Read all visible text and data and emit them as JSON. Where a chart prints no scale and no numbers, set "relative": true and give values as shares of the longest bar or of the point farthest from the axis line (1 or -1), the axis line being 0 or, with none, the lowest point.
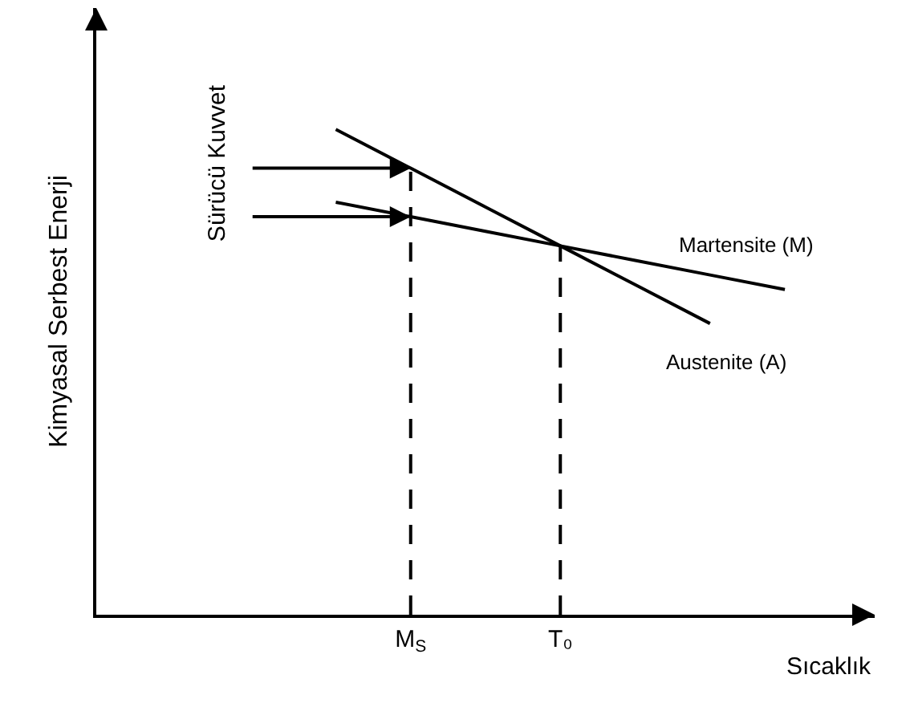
{
  "chart_data": {
    "type": "line",
    "relative": true,
    "xlabel": "Sıcaklık",
    "ylabel": "Kimyasal Serbest Enerji",
    "categories": [
      null,
      null,
      null,
      null,
      "M$_{S}$",
      null,
      "T₀",
      null,
      null,
      null,
      null
    ],
    "annotations": [
      "Sürücü Kuvvet"
    ],
    "grid": false,
    "legend": false,
    "tick_labels": "x",
    "ref_lines": [
      {
        "axis": "x",
        "value": "M$_{S}$",
        "color": "#000000",
        "line_style": "dashed"
      },
      {
        "axis": "x",
        "value": "T₀",
        "color": "#000000",
        "line_style": "dashed"
      }
    ],
    "series": [
      {
        "name": "Martensite (M)",
        "color": "#000000",
        "values": [
          null,
          null,
          null,
          0.85,
          0.82,
          0.79,
          0.76,
          0.73,
          0.7,
          0.67,
          null
        ]
      },
      {
        "name": "Austenite (A)",
        "color": "#000000",
        "values": [
          null,
          null,
          null,
          1.0,
          0.92,
          0.84,
          0.76,
          0.68,
          0.6,
          null,
          null
        ]
      }
    ]
  }
}
